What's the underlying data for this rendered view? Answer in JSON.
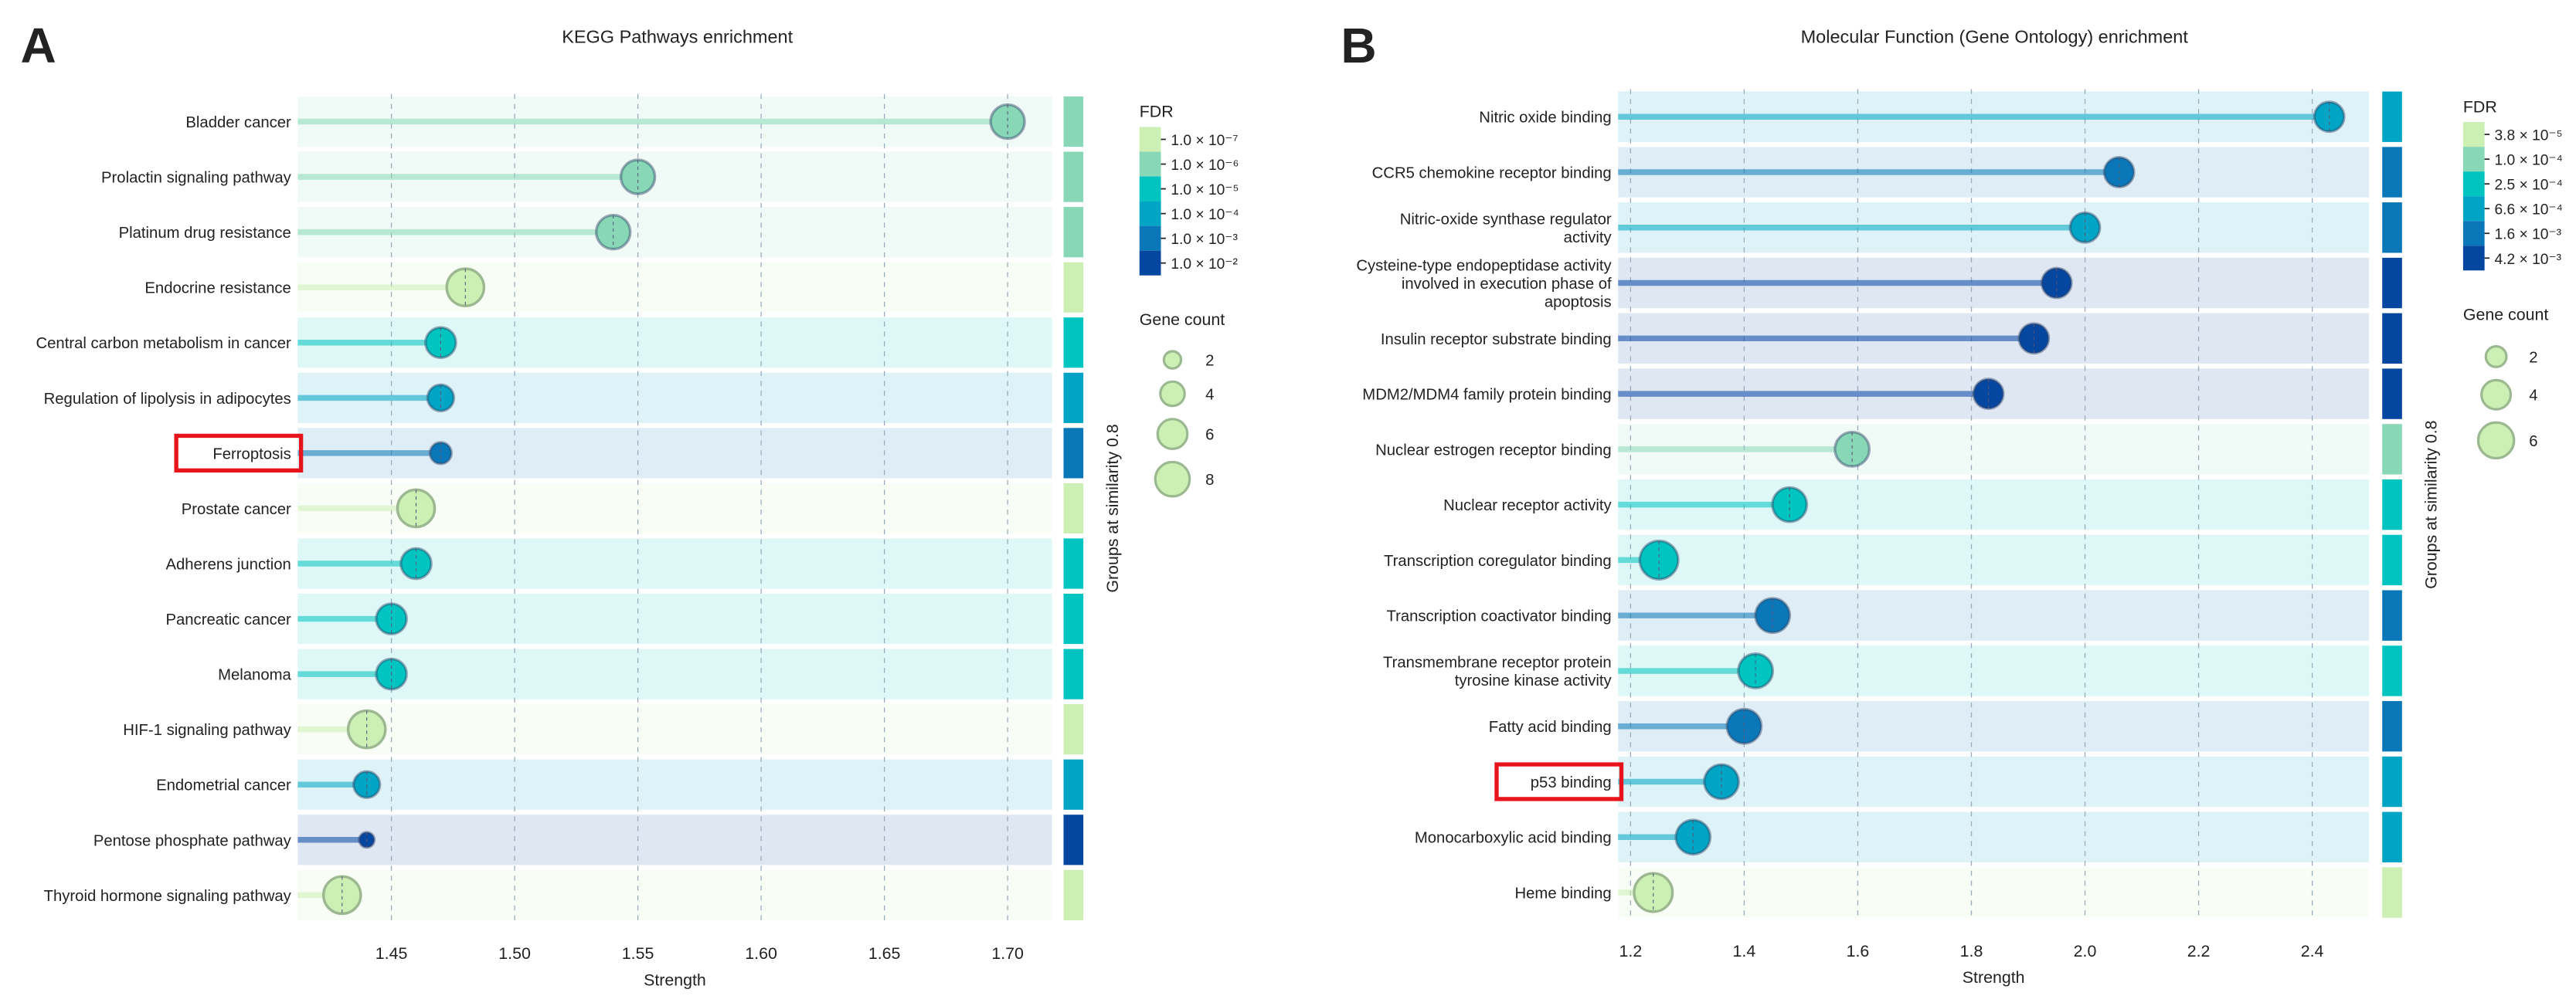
{
  "colors": {
    "fdr1": "#ccefb4",
    "fdr2": "#88d8b8",
    "fdr3": "#00c4c0",
    "fdr4": "#00a4c4",
    "fdr5": "#0a78b8",
    "fdr6": "#0446a0",
    "highlight": "#e8141c",
    "bubble_legend": "#ccefb4"
  },
  "chart_data": [
    {
      "panel_letter": "A",
      "type": "scatter",
      "title": "KEGG Pathways enrichment",
      "xlabel": "Strength",
      "side_label": "Groups at similarity 0.8",
      "xlim": [
        1.412,
        1.718
      ],
      "xticks": [
        1.45,
        1.5,
        1.55,
        1.6,
        1.65,
        1.7
      ],
      "xtick_labels": [
        "1.45",
        "1.50",
        "1.55",
        "1.60",
        "1.65",
        "1.70"
      ],
      "grid": true,
      "highlighted": "Ferroptosis",
      "fdr_legend": {
        "title": "FDR",
        "labels": [
          "1.0 × 10⁻⁷",
          "1.0 × 10⁻⁶",
          "1.0 × 10⁻⁵",
          "1.0 × 10⁻⁴",
          "1.0 × 10⁻³",
          "1.0 × 10⁻²"
        ]
      },
      "count_legend": {
        "title": "Gene count",
        "values": [
          2,
          4,
          6,
          8
        ],
        "labels": [
          "2",
          "4",
          "6",
          "8"
        ]
      },
      "points": [
        {
          "term": "Bladder cancer",
          "strength": 1.7,
          "fdr_level": 2,
          "count": 5,
          "group_level": 2
        },
        {
          "term": "Prolactin signaling pathway",
          "strength": 1.55,
          "fdr_level": 2,
          "count": 5,
          "group_level": 2
        },
        {
          "term": "Platinum drug resistance",
          "strength": 1.54,
          "fdr_level": 2,
          "count": 5,
          "group_level": 2
        },
        {
          "term": "Endocrine resistance",
          "strength": 1.48,
          "fdr_level": 1,
          "count": 6,
          "group_level": 1
        },
        {
          "term": "Central carbon metabolism in cancer",
          "strength": 1.47,
          "fdr_level": 3,
          "count": 4,
          "group_level": 3
        },
        {
          "term": "Regulation of lipolysis in adipocytes",
          "strength": 1.47,
          "fdr_level": 4,
          "count": 3,
          "group_level": 4
        },
        {
          "term": "Ferroptosis",
          "strength": 1.47,
          "fdr_level": 5,
          "count": 2,
          "group_level": 5
        },
        {
          "term": "Prostate cancer",
          "strength": 1.46,
          "fdr_level": 1,
          "count": 6,
          "group_level": 1
        },
        {
          "term": "Adherens junction",
          "strength": 1.46,
          "fdr_level": 3,
          "count": 4,
          "group_level": 3
        },
        {
          "term": "Pancreatic cancer",
          "strength": 1.45,
          "fdr_level": 3,
          "count": 4,
          "group_level": 3
        },
        {
          "term": "Melanoma",
          "strength": 1.45,
          "fdr_level": 3,
          "count": 4,
          "group_level": 3
        },
        {
          "term": "HIF-1 signaling pathway",
          "strength": 1.44,
          "fdr_level": 1,
          "count": 6,
          "group_level": 1
        },
        {
          "term": "Endometrial cancer",
          "strength": 1.44,
          "fdr_level": 4,
          "count": 3,
          "group_level": 4
        },
        {
          "term": "Pentose phosphate pathway",
          "strength": 1.44,
          "fdr_level": 6,
          "count": 1,
          "group_level": 6
        },
        {
          "term": "Thyroid hormone signaling pathway",
          "strength": 1.43,
          "fdr_level": 1,
          "count": 6,
          "group_level": 1
        }
      ]
    },
    {
      "panel_letter": "B",
      "type": "scatter",
      "title": "Molecular Function (Gene Ontology) enrichment",
      "xlabel": "Strength",
      "side_label": "Groups at similarity 0.8",
      "xlim": [
        1.178,
        2.5
      ],
      "xticks": [
        1.2,
        1.4,
        1.6,
        1.8,
        2.0,
        2.2,
        2.4
      ],
      "xtick_labels": [
        "1.2",
        "1.4",
        "1.6",
        "1.8",
        "2.0",
        "2.2",
        "2.4"
      ],
      "grid": true,
      "highlighted": "p53 binding",
      "fdr_legend": {
        "title": "FDR",
        "labels": [
          "3.8 × 10⁻⁵",
          "1.0 × 10⁻⁴",
          "2.5 × 10⁻⁴",
          "6.6 × 10⁻⁴",
          "1.6 × 10⁻³",
          "4.2 × 10⁻³"
        ]
      },
      "count_legend": {
        "title": "Gene count",
        "values": [
          2,
          4,
          6
        ],
        "labels": [
          "2",
          "4",
          "6"
        ]
      },
      "points": [
        {
          "term": "Nitric oxide binding",
          "strength": 2.43,
          "fdr_level": 4,
          "count": 3,
          "group_level": 4
        },
        {
          "term": "CCR5 chemokine receptor binding",
          "strength": 2.06,
          "fdr_level": 5,
          "count": 3,
          "group_level": 5
        },
        {
          "term": "Nitric-oxide synthase regulator|activity",
          "strength": 2.0,
          "fdr_level": 4,
          "count": 3,
          "group_level": 5
        },
        {
          "term": "Cysteine-type endopeptidase activity|involved in execution phase of|apoptosis",
          "strength": 1.95,
          "fdr_level": 6,
          "count": 3,
          "group_level": 6
        },
        {
          "term": "Insulin receptor substrate binding",
          "strength": 1.91,
          "fdr_level": 6,
          "count": 3,
          "group_level": 6
        },
        {
          "term": "MDM2/MDM4 family protein binding",
          "strength": 1.83,
          "fdr_level": 6,
          "count": 3,
          "group_level": 6
        },
        {
          "term": "Nuclear estrogen receptor binding",
          "strength": 1.59,
          "fdr_level": 2,
          "count": 4,
          "group_level": 2
        },
        {
          "term": "Nuclear receptor activity",
          "strength": 1.48,
          "fdr_level": 3,
          "count": 4,
          "group_level": 3
        },
        {
          "term": "Transcription coregulator binding",
          "strength": 1.25,
          "fdr_level": 3,
          "count": 5,
          "group_level": 3
        },
        {
          "term": "Transcription coactivator binding",
          "strength": 1.45,
          "fdr_level": 5,
          "count": 4,
          "group_level": 5
        },
        {
          "term": "Transmembrane receptor protein|tyrosine kinase activity",
          "strength": 1.42,
          "fdr_level": 3,
          "count": 4,
          "group_level": 3
        },
        {
          "term": "Fatty acid binding",
          "strength": 1.4,
          "fdr_level": 5,
          "count": 4,
          "group_level": 5
        },
        {
          "term": "p53 binding",
          "strength": 1.36,
          "fdr_level": 4,
          "count": 4,
          "group_level": 4
        },
        {
          "term": "Monocarboxylic acid binding",
          "strength": 1.31,
          "fdr_level": 4,
          "count": 4,
          "group_level": 4
        },
        {
          "term": "Heme binding",
          "strength": 1.24,
          "fdr_level": 1,
          "count": 5,
          "group_level": 1
        }
      ]
    }
  ]
}
